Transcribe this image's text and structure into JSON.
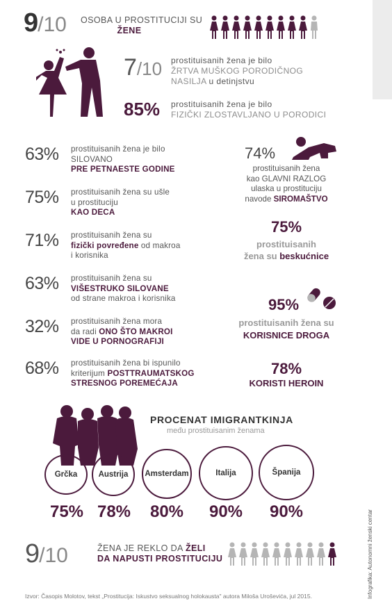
{
  "top": {
    "stat_big": "9",
    "stat_den": "/10",
    "text_line1": "OSOBA U PROSTITUCIJI SU",
    "text_line2": "ŽENE"
  },
  "violence": {
    "stat1_num": "7",
    "stat1_den": "/10",
    "stat1_line1": "prostituisanih žena je bilo",
    "stat1_line2": "ŽRTVA MUŠKOG PORODIČNOG",
    "stat1_line3a": "NASILJA",
    "stat1_line3b": " u detinjstvu",
    "stat2_pct": "85%",
    "stat2_line1": "prostituisanih žena je bilo",
    "stat2_line2": "FIZIČKI ZLOSTAVLJANO U PORODICI"
  },
  "left_stats": [
    {
      "pct": "63%",
      "l1": "prostituisanih žena je bilo",
      "l2": "SILOVANO",
      "l3b": "PRE PETNAESTE GODINE"
    },
    {
      "pct": "75%",
      "l1": "prostituisanih žena su ušle",
      "l2": "u prostituciju",
      "l3b": "KAO DECA"
    },
    {
      "pct": "71%",
      "l1": "prostituisanih žena su",
      "l2b": "fizički povređene",
      "l2": " od makroa",
      "l3": "i korisnika"
    },
    {
      "pct": "63%",
      "l1": "prostituisanih žena su",
      "l2b": "VIŠESTRUKO SILOVANE",
      "l3": "od strane makroa i korisnika"
    },
    {
      "pct": "32%",
      "l1": "prostituisanih žena mora",
      "l2": "da radi ",
      "l2b": "ONO ŠTO MAKROI",
      "l3b": "VIDE U PORNOGRAFIJI"
    },
    {
      "pct": "68%",
      "l1": "prostituisanih žena bi ispunilo",
      "l2": "kriterijum ",
      "l2b": "POSTTRAUMATSKOG",
      "l3b": "STRESNOG POREMEĆAJA"
    }
  ],
  "right_stats": {
    "poverty_pct": "74%",
    "poverty_l1": "prostituisanih žena",
    "poverty_l2": "kao GLAVNI RAZLOG",
    "poverty_l3": "ulaska u prostituciju",
    "poverty_l4a": "navode ",
    "poverty_l4b": "SIROMAŠTVO",
    "homeless_pct": "75%",
    "homeless_l1": "prostituisanih",
    "homeless_l2a": "žena su ",
    "homeless_l2b": "beskućnice",
    "drugs_pct": "95%",
    "drugs_l1": "prostituisanih žena su",
    "drugs_l2": "KORISNICE DROGA",
    "heroin_pct": "78%",
    "heroin_l1": "KORISTI HEROIN"
  },
  "immigrants": {
    "title": "PROCENAT IMIGRANTKINJA",
    "subtitle": "među prostituisanim ženama",
    "cities": [
      {
        "name": "Grčka",
        "pct": "75%"
      },
      {
        "name": "Austrija",
        "pct": "78%"
      },
      {
        "name": "Amsterdam",
        "pct": "80%"
      },
      {
        "name": "Italija",
        "pct": "90%"
      },
      {
        "name": "Španija",
        "pct": "90%"
      }
    ]
  },
  "bottom": {
    "stat_big": "9",
    "stat_den": "/10",
    "l1a": "ŽENA JE REKLO DA ",
    "l1b": "ŽELI",
    "l2": "DA NAPUSTI PROSTITUCIJU"
  },
  "footer": {
    "source": "Izvor: Časopis Molotov, tekst „Prostitucija: Iskustvo seksualnog holokausta\" autora Miloša Uroševića, jul 2015.",
    "credit": "Infografika: Autonomni ženski centar"
  },
  "colors": {
    "accent": "#4b1a3c",
    "grey_figure": "#b5b5b5"
  }
}
